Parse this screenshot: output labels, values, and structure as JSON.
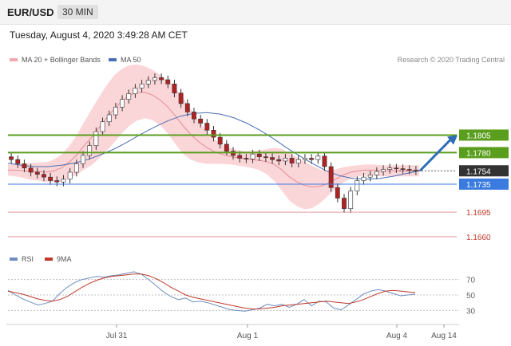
{
  "header": {
    "pair": "EUR/USD",
    "timeframe": "30 MIN"
  },
  "datetime": "Tuesday, August 4, 2020 3:49:28 AM CET",
  "legend": {
    "bb_label": "MA 20 + Bollinger Bands",
    "ma_label": "MA 50",
    "rsi_label": "RSI",
    "rsi_ma_label": "9MA"
  },
  "credit": "Research © 2020 Trading Central",
  "colors": {
    "up": "#ffffff",
    "down": "#b22222",
    "bands": "#f9c8cc",
    "ma50": "#4a6fb5",
    "ma20": "#e38b93",
    "green": "#5a9e1e",
    "blue": "#3b7be0",
    "red": "#c0392b",
    "arrow": "#2f6db5",
    "last": "#333333"
  },
  "chart_data": [
    {
      "type": "line",
      "title": "EUR/USD 30 MIN",
      "price_range": [
        1.1645,
        1.19
      ],
      "levels": [
        {
          "price": 1.1805,
          "label": "1.1805",
          "kind": "resistance"
        },
        {
          "price": 1.178,
          "label": "1.1780",
          "kind": "resistance"
        },
        {
          "price": 1.1754,
          "label": "1.1754",
          "kind": "last"
        },
        {
          "price": 1.1735,
          "label": "1.1735",
          "kind": "pivot"
        },
        {
          "price": 1.1695,
          "label": "1.1695",
          "kind": "support"
        },
        {
          "price": 1.166,
          "label": "1.1660",
          "kind": "support"
        }
      ],
      "x_labels": [
        "Jul 31",
        "Aug 1",
        "Aug 4",
        "Aug 14"
      ],
      "close": [
        1.177,
        1.1764,
        1.1758,
        1.1752,
        1.1749,
        1.1745,
        1.174,
        1.1738,
        1.1742,
        1.1752,
        1.1764,
        1.1776,
        1.179,
        1.181,
        1.1824,
        1.1834,
        1.1845,
        1.1856,
        1.1864,
        1.1872,
        1.1878,
        1.1883,
        1.1887,
        1.1884,
        1.1878,
        1.1865,
        1.185,
        1.1838,
        1.1828,
        1.1822,
        1.1812,
        1.1802,
        1.1792,
        1.1782,
        1.1776,
        1.1772,
        1.1771,
        1.1778,
        1.1774,
        1.1773,
        1.177,
        1.1768,
        1.1772,
        1.1765,
        1.177,
        1.1772,
        1.177,
        1.1775,
        1.176,
        1.173,
        1.1715,
        1.17,
        1.1725,
        1.174,
        1.1745,
        1.1748,
        1.1753,
        1.1756,
        1.1758,
        1.1757,
        1.1756,
        1.1755,
        1.1754
      ],
      "bb_mid": [
        1.1755,
        1.1755,
        1.1754,
        1.1753,
        1.1753,
        1.1752,
        1.1754,
        1.1758,
        1.1766,
        1.1776,
        1.179,
        1.1802,
        1.1816,
        1.183,
        1.1843,
        1.1854,
        1.1862,
        1.1866,
        1.1866,
        1.1862,
        1.1855,
        1.1845,
        1.1832,
        1.1818,
        1.1806,
        1.1796,
        1.1788,
        1.1782,
        1.1778,
        1.1775,
        1.1773,
        1.1771,
        1.177,
        1.1769,
        1.1767,
        1.1763,
        1.1755,
        1.1745,
        1.1738,
        1.1733,
        1.1731,
        1.1732,
        1.1736,
        1.1742,
        1.1748,
        1.1752,
        1.1754,
        1.1755,
        1.1755,
        1.1754,
        1.1754,
        1.1754,
        1.1754,
        1.1754,
        1.1754
      ],
      "bb_width": [
        0.0008,
        0.0009,
        0.001,
        0.0012,
        0.0013,
        0.0014,
        0.0016,
        0.0019,
        0.0023,
        0.0028,
        0.0034,
        0.004,
        0.0044,
        0.0047,
        0.0048,
        0.0046,
        0.0043,
        0.004,
        0.0037,
        0.0036,
        0.0036,
        0.0038,
        0.004,
        0.004,
        0.0036,
        0.003,
        0.0024,
        0.0018,
        0.0014,
        0.0012,
        0.0011,
        0.0011,
        0.0012,
        0.0014,
        0.0018,
        0.0024,
        0.003,
        0.0034,
        0.0035,
        0.0034,
        0.003,
        0.0024,
        0.0018,
        0.0014,
        0.0011,
        0.0009,
        0.0008,
        0.0008,
        0.0008,
        0.0008,
        0.0008,
        0.0008,
        0.0008,
        0.0008,
        0.0008
      ],
      "ma50": [
        1.1765,
        1.1762,
        1.176,
        1.176,
        1.1762,
        1.1765,
        1.177,
        1.1777,
        1.1785,
        1.1795,
        1.1806,
        1.1816,
        1.1825,
        1.1832,
        1.1836,
        1.1837,
        1.1835,
        1.183,
        1.1822,
        1.1812,
        1.18,
        1.1787,
        1.1775,
        1.1764,
        1.1754,
        1.1747,
        1.1743,
        1.1742,
        1.1743,
        1.1746,
        1.175,
        1.1754
      ]
    },
    {
      "type": "line",
      "title": "RSI",
      "ylim": [
        15,
        85
      ],
      "y_ticks": [
        70,
        50,
        30
      ],
      "series": [
        {
          "name": "RSI",
          "values": [
            56,
            50,
            45,
            41,
            37,
            39,
            42,
            52,
            60,
            66,
            70,
            72,
            74,
            73,
            75,
            76,
            78,
            80,
            77,
            70,
            62,
            54,
            48,
            44,
            46,
            41,
            42,
            40,
            37,
            34,
            31,
            30,
            29,
            31,
            33,
            38,
            36,
            38,
            34,
            38,
            44,
            36,
            42,
            41,
            33,
            31,
            37,
            44,
            51,
            55,
            57,
            55,
            52,
            49,
            50,
            51
          ]
        },
        {
          "name": "9MA",
          "values": [
            55,
            53,
            51,
            48,
            45,
            43,
            42,
            44,
            48,
            54,
            60,
            65,
            69,
            72,
            74,
            75,
            76,
            77,
            77,
            75,
            71,
            66,
            60,
            55,
            50,
            47,
            45,
            43,
            41,
            39,
            37,
            35,
            33,
            32,
            32,
            33,
            34,
            36,
            37,
            38,
            39,
            40,
            41,
            42,
            41,
            40,
            39,
            41,
            44,
            48,
            52,
            55,
            56,
            55,
            54,
            53
          ]
        }
      ]
    }
  ]
}
